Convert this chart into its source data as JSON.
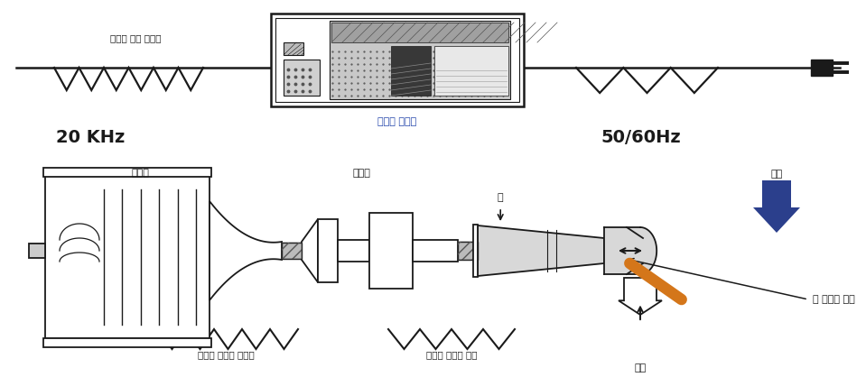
{
  "bg_color": "#ffffff",
  "label_goupa_energy": "고주파 전기 에너지",
  "label_20khz": "20 KHz",
  "label_generator": "초음파 발진기",
  "label_5060hz": "50/60Hz",
  "label_transducer": "진동자",
  "label_booster": "부스터",
  "label_horn": "혼",
  "label_pressure": "압력",
  "label_mech_energy": "고주파 기계적 에너지",
  "label_amp_vib": "확대된 기계적 진동",
  "label_weld_part": "피 융접된 통관",
  "label_weld_bead": "연밥",
  "blue_color": "#2b3f8c",
  "orange_color": "#d4761a",
  "dark_color": "#1a1a1a",
  "gray_color": "#888888",
  "light_gray": "#cccccc",
  "dot_gray": "#aaaaaa",
  "line_lw": 1.3
}
